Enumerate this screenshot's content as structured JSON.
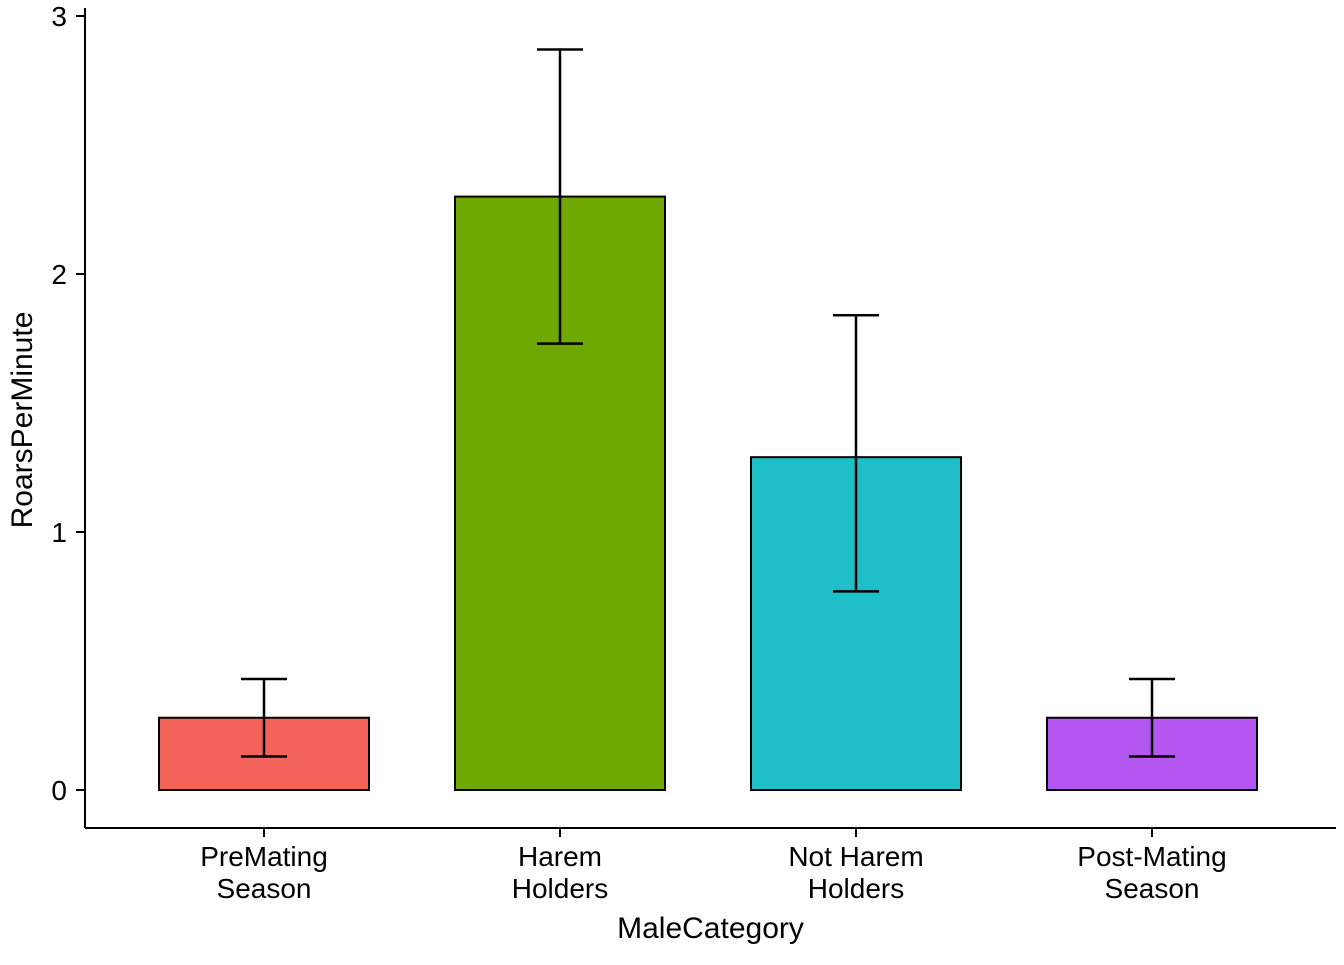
{
  "chart_data": {
    "type": "bar",
    "title": "",
    "xlabel": "MaleCategory",
    "ylabel": "RoarsPerMinute",
    "categories": [
      "PreMating Season",
      "Harem Holders",
      "Not Harem Holders",
      "Post-Mating Season"
    ],
    "categories_lines": [
      [
        "PreMating",
        "Season"
      ],
      [
        "Harem",
        "Holders"
      ],
      [
        "Not Harem",
        "Holders"
      ],
      [
        "Post-Mating",
        "Season"
      ]
    ],
    "values": [
      0.28,
      2.3,
      1.29,
      0.28
    ],
    "error_low": [
      0.13,
      1.73,
      0.77,
      0.13
    ],
    "error_high": [
      0.43,
      2.87,
      1.84,
      0.43
    ],
    "bar_colors": [
      "#F4635A",
      "#70A802",
      "#20BEC6",
      "#B457F0"
    ],
    "bar_border_color": "#000000",
    "error_bar_color": "#000000",
    "axis_color": "#000000",
    "text_color": "#000000",
    "background": "#FFFFFF",
    "ylim": [
      0,
      3
    ],
    "yticks": [
      "0",
      "1",
      "2",
      "3"
    ],
    "grid": false,
    "legend": "none"
  }
}
